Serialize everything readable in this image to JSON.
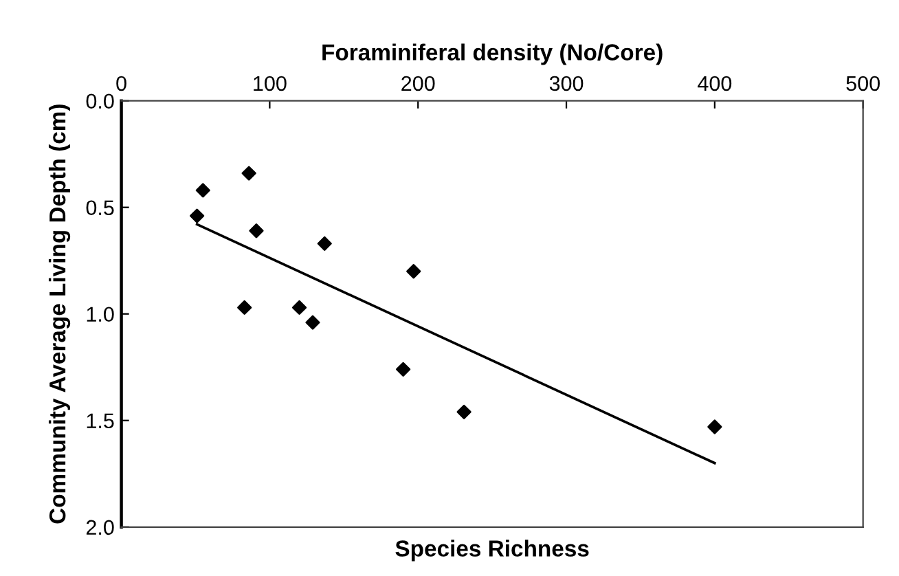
{
  "chart_data": {
    "type": "scatter",
    "xlabel": "Foraminiferal density (No/Core)",
    "ylabel": "Community Average Living Depth (cm)",
    "annotations": [
      "Species Richness"
    ],
    "xlim": [
      0,
      500
    ],
    "xticks": [
      0,
      100,
      200,
      300,
      400,
      500
    ],
    "ylim": [
      2.0,
      0.0
    ],
    "yticks": [
      {
        "value": 0,
        "label": "0.0"
      },
      {
        "value": 0.5,
        "label": "0.5"
      },
      {
        "value": 1,
        "label": "1.0"
      },
      {
        "value": 1.5,
        "label": "1.5"
      },
      {
        "value": 2,
        "label": "2.0"
      }
    ],
    "grid": false,
    "series": [
      {
        "color": "#000000",
        "marker": "diamond",
        "x": [
          51,
          55,
          86,
          91,
          83,
          137,
          120,
          129,
          197,
          190,
          231,
          400
        ],
        "values": [
          0.54,
          0.42,
          0.34,
          0.61,
          0.97,
          0.67,
          0.97,
          1.04,
          0.8,
          1.26,
          1.46,
          1.53
        ]
      },
      {
        "type": "line",
        "color": "#000000",
        "line_style": "solid",
        "x": [
          51,
          400
        ],
        "values": [
          0.58,
          1.7
        ]
      }
    ]
  }
}
